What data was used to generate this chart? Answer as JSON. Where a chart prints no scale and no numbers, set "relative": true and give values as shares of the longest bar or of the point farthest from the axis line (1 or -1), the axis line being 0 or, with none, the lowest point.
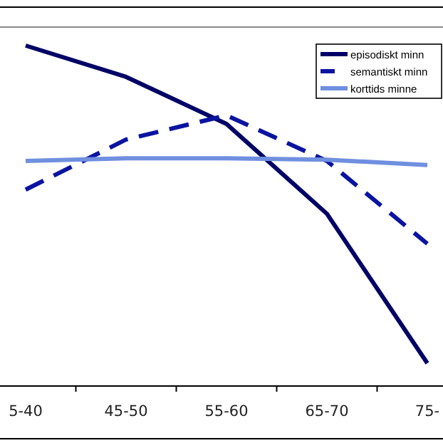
{
  "chart_data": {
    "type": "line",
    "relative": true,
    "categories": [
      "5-40",
      "45-50",
      "55-60",
      "65-70",
      "75-"
    ],
    "series": [
      {
        "name": "episodiskt minn",
        "color": "#000066",
        "line_style": "solid",
        "values": [
          1,
          0.908,
          0.77,
          0.506,
          0.067
        ]
      },
      {
        "name": "semantiskt minn",
        "color": "#0a14a0",
        "line_style": "dashed",
        "values": [
          0.577,
          0.724,
          0.795,
          0.661,
          0.418
        ]
      },
      {
        "name": "korttids minne",
        "color": "#6f8fdf",
        "line_style": "solid",
        "values": [
          0.661,
          0.669,
          0.669,
          0.665,
          0.649
        ]
      }
    ],
    "legend": "top right",
    "marker": "none",
    "grid": false
  }
}
